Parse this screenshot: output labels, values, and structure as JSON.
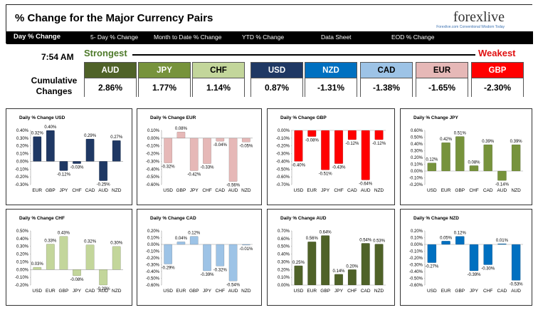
{
  "header": {
    "title": "% Change for the Major Currency Pairs",
    "logo": "forexlive",
    "logo_sub": "Forexlive.com Conventional Wisdom Today",
    "nav": [
      "Day % Change",
      "5- Day % Change",
      "Month to Date % Change",
      "YTD % Change",
      "Data Sheet",
      "EOD % Change"
    ]
  },
  "summary": {
    "time": "7:54 AM",
    "strongest": "Strongest",
    "weakest": "Weakest",
    "cumulative_label_1": "Cumulative",
    "cumulative_label_2": "Changes",
    "currencies": [
      {
        "name": "AUD",
        "value": "2.86%",
        "color": "#4f6228",
        "text": "#ffffff"
      },
      {
        "name": "JPY",
        "value": "1.77%",
        "color": "#77933c",
        "text": "#ffffff"
      },
      {
        "name": "CHF",
        "value": "1.14%",
        "color": "#c3d69b",
        "text": "#000000"
      },
      {
        "name": "USD",
        "value": "0.87%",
        "color": "#1f3864",
        "text": "#ffffff"
      },
      {
        "name": "NZD",
        "value": "-1.31%",
        "color": "#0070c0",
        "text": "#ffffff"
      },
      {
        "name": "CAD",
        "value": "-1.38%",
        "color": "#9dc3e6",
        "text": "#000000"
      },
      {
        "name": "EUR",
        "value": "-1.65%",
        "color": "#e6b8b7",
        "text": "#000000"
      },
      {
        "name": "GBP",
        "value": "-2.30%",
        "color": "#ff0000",
        "text": "#ffffff"
      }
    ]
  },
  "chart_data": [
    {
      "type": "bar",
      "title": "Daily % Change USD",
      "color": "#1f3864",
      "categories": [
        "EUR",
        "GBP",
        "JPY",
        "CHF",
        "CAD",
        "AUD",
        "NZD"
      ],
      "values": [
        0.32,
        0.4,
        -0.12,
        -0.03,
        0.29,
        -0.25,
        0.27
      ],
      "labels": [
        "0.32%",
        "0.40%",
        "-0.12%",
        "-0.03%",
        "0.29%",
        "-0.25%",
        "0.27%"
      ],
      "ylim": [
        -0.3,
        0.4
      ],
      "ticks": [
        "0.40%",
        "0.30%",
        "0.20%",
        "0.10%",
        "0.00%",
        "-0.10%",
        "-0.20%",
        "-0.30%"
      ]
    },
    {
      "type": "bar",
      "title": "Daily % Change EUR",
      "color": "#e6b8b7",
      "categories": [
        "USD",
        "GBP",
        "JPY",
        "CHF",
        "CAD",
        "AUD",
        "NZD"
      ],
      "values": [
        -0.32,
        0.08,
        -0.42,
        -0.33,
        -0.04,
        -0.56,
        -0.05
      ],
      "labels": [
        "-0.32%",
        "0.08%",
        "-0.42%",
        "-0.33%",
        "-0.04%",
        "-0.56%",
        "-0.05%"
      ],
      "ylim": [
        -0.6,
        0.1
      ],
      "ticks": [
        "0.10%",
        "0.00%",
        "-0.10%",
        "-0.20%",
        "-0.30%",
        "-0.40%",
        "-0.50%",
        "-0.60%"
      ]
    },
    {
      "type": "bar",
      "title": "Daily % Change GBP",
      "color": "#ff0000",
      "categories": [
        "USD",
        "EUR",
        "JPY",
        "CHF",
        "CAD",
        "AUD",
        "NZD"
      ],
      "values": [
        -0.4,
        -0.08,
        -0.51,
        -0.43,
        -0.12,
        -0.64,
        -0.12
      ],
      "labels": [
        "-0.40%",
        "-0.08%",
        "-0.51%",
        "-0.43%",
        "-0.12%",
        "-0.64%",
        "-0.12%"
      ],
      "ylim": [
        -0.7,
        0.0
      ],
      "ticks": [
        "0.00%",
        "-0.10%",
        "-0.20%",
        "-0.30%",
        "-0.40%",
        "-0.50%",
        "-0.60%",
        "-0.70%"
      ]
    },
    {
      "type": "bar",
      "title": "Daily % Change JPY",
      "color": "#77933c",
      "categories": [
        "USD",
        "EUR",
        "GBP",
        "CHF",
        "CAD",
        "AUD",
        "NZD"
      ],
      "values": [
        0.12,
        0.42,
        0.51,
        0.08,
        0.39,
        -0.14,
        0.39
      ],
      "labels": [
        "0.12%",
        "0.42%",
        "0.51%",
        "0.08%",
        "0.39%",
        "-0.14%",
        "0.39%"
      ],
      "ylim": [
        -0.2,
        0.6
      ],
      "ticks": [
        "0.60%",
        "0.50%",
        "0.40%",
        "0.30%",
        "0.20%",
        "0.10%",
        "0.00%",
        "-0.10%",
        "-0.20%"
      ]
    },
    {
      "type": "bar",
      "title": "Daily % Change CHF",
      "color": "#c3d69b",
      "categories": [
        "USD",
        "EUR",
        "GBP",
        "JPY",
        "CAD",
        "AUD",
        "NZD"
      ],
      "values": [
        0.03,
        0.33,
        0.43,
        -0.08,
        0.32,
        -0.2,
        0.3
      ],
      "labels": [
        "0.03%",
        "0.33%",
        "0.43%",
        "-0.08%",
        "0.32%",
        "-0.20%",
        "0.30%"
      ],
      "ylim": [
        -0.2,
        0.5
      ],
      "ticks": [
        "0.50%",
        "0.40%",
        "0.30%",
        "0.20%",
        "0.10%",
        "0.00%",
        "-0.10%",
        "-0.20%"
      ]
    },
    {
      "type": "bar",
      "title": "Daily % Change CAD",
      "color": "#9dc3e6",
      "categories": [
        "USD",
        "EUR",
        "GBP",
        "JPY",
        "CHF",
        "AUD",
        "NZD"
      ],
      "values": [
        -0.29,
        0.04,
        0.12,
        -0.39,
        -0.32,
        -0.54,
        -0.01
      ],
      "labels": [
        "-0.29%",
        "0.04%",
        "0.12%",
        "-0.39%",
        "-0.32%",
        "-0.54%",
        "-0.01%"
      ],
      "ylim": [
        -0.6,
        0.2
      ],
      "ticks": [
        "0.20%",
        "0.10%",
        "0.00%",
        "-0.10%",
        "-0.20%",
        "-0.30%",
        "-0.40%",
        "-0.50%",
        "-0.60%"
      ]
    },
    {
      "type": "bar",
      "title": "Daily % Change AUD",
      "color": "#4f6228",
      "categories": [
        "USD",
        "EUR",
        "GBP",
        "JPY",
        "CHF",
        "CAD",
        "NZD"
      ],
      "values": [
        0.25,
        0.56,
        0.64,
        0.14,
        0.2,
        0.54,
        0.53
      ],
      "labels": [
        "0.25%",
        "0.56%",
        "0.64%",
        "0.14%",
        "0.20%",
        "0.54%",
        "0.53%"
      ],
      "ylim": [
        0.0,
        0.7
      ],
      "ticks": [
        "0.70%",
        "0.60%",
        "0.50%",
        "0.40%",
        "0.30%",
        "0.20%",
        "0.10%",
        "0.00%"
      ]
    },
    {
      "type": "bar",
      "title": "Daily % Change NZD",
      "color": "#0070c0",
      "categories": [
        "USD",
        "EUR",
        "GBP",
        "JPY",
        "CHF",
        "CAD",
        "AUD"
      ],
      "values": [
        -0.27,
        0.05,
        0.12,
        -0.39,
        -0.3,
        0.01,
        -0.53
      ],
      "labels": [
        "-0.27%",
        "0.05%",
        "0.12%",
        "-0.39%",
        "-0.30%",
        "0.01%",
        "-0.53%"
      ],
      "ylim": [
        -0.6,
        0.2
      ],
      "ticks": [
        "0.20%",
        "0.10%",
        "0.00%",
        "-0.10%",
        "-0.20%",
        "-0.30%",
        "-0.40%",
        "-0.50%",
        "-0.60%"
      ]
    }
  ]
}
